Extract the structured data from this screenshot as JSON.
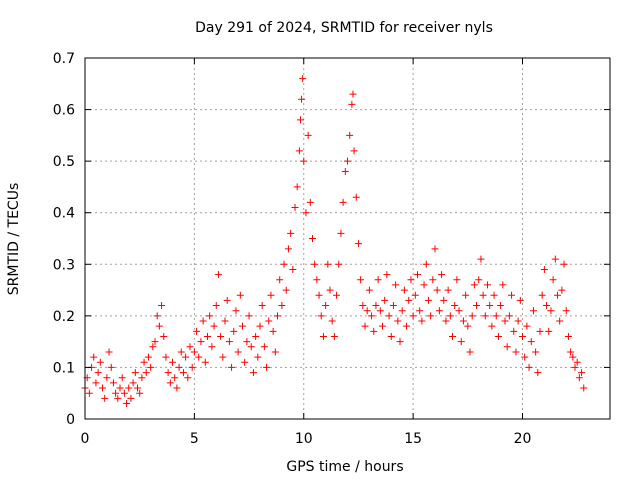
{
  "chart_data": {
    "type": "scatter",
    "title": "Day 291 of 2024, SRMTID for receiver nyls",
    "xlabel": "GPS time / hours",
    "ylabel": "SRMTID / TECUs",
    "xlim": [
      0,
      24
    ],
    "ylim": [
      0,
      0.7
    ],
    "x_ticks": [
      0,
      5,
      10,
      15,
      20
    ],
    "x_tick_labels": [
      "0",
      "5",
      "10",
      "15",
      "20"
    ],
    "y_ticks": [
      0,
      0.1,
      0.2,
      0.3,
      0.4,
      0.5,
      0.6,
      0.7
    ],
    "y_tick_labels": [
      "0",
      "0.1",
      "0.2",
      "0.3",
      "0.4",
      "0.5",
      "0.6",
      "0.7"
    ],
    "grid": true,
    "marker": "+",
    "colors": {
      "series": "#ff0000",
      "grid": "#a0a0a0",
      "axes": "#000000"
    },
    "series": [
      {
        "name": "SRMTID",
        "points": [
          [
            0.0,
            0.06
          ],
          [
            0.1,
            0.08
          ],
          [
            0.2,
            0.05
          ],
          [
            0.3,
            0.1
          ],
          [
            0.4,
            0.12
          ],
          [
            0.5,
            0.07
          ],
          [
            0.6,
            0.09
          ],
          [
            0.7,
            0.11
          ],
          [
            0.8,
            0.06
          ],
          [
            0.9,
            0.04
          ],
          [
            1.0,
            0.08
          ],
          [
            1.1,
            0.13
          ],
          [
            1.2,
            0.1
          ],
          [
            1.3,
            0.07
          ],
          [
            1.4,
            0.05
          ],
          [
            1.5,
            0.04
          ],
          [
            1.6,
            0.06
          ],
          [
            1.7,
            0.08
          ],
          [
            1.8,
            0.05
          ],
          [
            1.9,
            0.03
          ],
          [
            2.0,
            0.06
          ],
          [
            2.1,
            0.04
          ],
          [
            2.2,
            0.07
          ],
          [
            2.3,
            0.09
          ],
          [
            2.4,
            0.06
          ],
          [
            2.5,
            0.05
          ],
          [
            2.6,
            0.08
          ],
          [
            2.7,
            0.11
          ],
          [
            2.8,
            0.09
          ],
          [
            2.9,
            0.12
          ],
          [
            3.0,
            0.1
          ],
          [
            3.1,
            0.14
          ],
          [
            3.2,
            0.15
          ],
          [
            3.3,
            0.2
          ],
          [
            3.4,
            0.18
          ],
          [
            3.5,
            0.22
          ],
          [
            3.6,
            0.16
          ],
          [
            3.7,
            0.12
          ],
          [
            3.8,
            0.09
          ],
          [
            3.9,
            0.07
          ],
          [
            4.0,
            0.11
          ],
          [
            4.1,
            0.08
          ],
          [
            4.2,
            0.06
          ],
          [
            4.3,
            0.1
          ],
          [
            4.4,
            0.13
          ],
          [
            4.5,
            0.09
          ],
          [
            4.6,
            0.12
          ],
          [
            4.7,
            0.08
          ],
          [
            4.8,
            0.14
          ],
          [
            4.9,
            0.1
          ],
          [
            5.0,
            0.13
          ],
          [
            5.1,
            0.17
          ],
          [
            5.2,
            0.12
          ],
          [
            5.3,
            0.15
          ],
          [
            5.4,
            0.19
          ],
          [
            5.5,
            0.11
          ],
          [
            5.6,
            0.16
          ],
          [
            5.7,
            0.2
          ],
          [
            5.8,
            0.14
          ],
          [
            5.9,
            0.18
          ],
          [
            6.0,
            0.22
          ],
          [
            6.1,
            0.28
          ],
          [
            6.2,
            0.16
          ],
          [
            6.3,
            0.12
          ],
          [
            6.4,
            0.19
          ],
          [
            6.5,
            0.23
          ],
          [
            6.6,
            0.15
          ],
          [
            6.7,
            0.1
          ],
          [
            6.8,
            0.17
          ],
          [
            6.9,
            0.21
          ],
          [
            7.0,
            0.13
          ],
          [
            7.1,
            0.24
          ],
          [
            7.2,
            0.18
          ],
          [
            7.3,
            0.11
          ],
          [
            7.4,
            0.15
          ],
          [
            7.5,
            0.2
          ],
          [
            7.6,
            0.14
          ],
          [
            7.7,
            0.09
          ],
          [
            7.8,
            0.16
          ],
          [
            7.9,
            0.12
          ],
          [
            8.0,
            0.18
          ],
          [
            8.1,
            0.22
          ],
          [
            8.2,
            0.14
          ],
          [
            8.3,
            0.1
          ],
          [
            8.4,
            0.19
          ],
          [
            8.5,
            0.24
          ],
          [
            8.6,
            0.17
          ],
          [
            8.7,
            0.13
          ],
          [
            8.8,
            0.2
          ],
          [
            8.9,
            0.27
          ],
          [
            9.0,
            0.22
          ],
          [
            9.1,
            0.3
          ],
          [
            9.2,
            0.25
          ],
          [
            9.3,
            0.33
          ],
          [
            9.4,
            0.36
          ],
          [
            9.5,
            0.29
          ],
          [
            9.6,
            0.41
          ],
          [
            9.7,
            0.45
          ],
          [
            9.8,
            0.52
          ],
          [
            9.85,
            0.58
          ],
          [
            9.9,
            0.62
          ],
          [
            9.95,
            0.66
          ],
          [
            10.0,
            0.5
          ],
          [
            10.1,
            0.4
          ],
          [
            10.2,
            0.55
          ],
          [
            10.3,
            0.42
          ],
          [
            10.4,
            0.35
          ],
          [
            10.5,
            0.3
          ],
          [
            10.6,
            0.27
          ],
          [
            10.7,
            0.24
          ],
          [
            10.8,
            0.2
          ],
          [
            10.9,
            0.16
          ],
          [
            11.0,
            0.22
          ],
          [
            11.1,
            0.3
          ],
          [
            11.2,
            0.25
          ],
          [
            11.3,
            0.19
          ],
          [
            11.4,
            0.16
          ],
          [
            11.5,
            0.24
          ],
          [
            11.6,
            0.3
          ],
          [
            11.7,
            0.36
          ],
          [
            11.8,
            0.42
          ],
          [
            11.9,
            0.48
          ],
          [
            12.0,
            0.5
          ],
          [
            12.1,
            0.55
          ],
          [
            12.2,
            0.61
          ],
          [
            12.25,
            0.63
          ],
          [
            12.3,
            0.52
          ],
          [
            12.4,
            0.43
          ],
          [
            12.5,
            0.34
          ],
          [
            12.6,
            0.27
          ],
          [
            12.7,
            0.22
          ],
          [
            12.8,
            0.18
          ],
          [
            12.9,
            0.21
          ],
          [
            13.0,
            0.25
          ],
          [
            13.1,
            0.2
          ],
          [
            13.2,
            0.17
          ],
          [
            13.3,
            0.22
          ],
          [
            13.4,
            0.27
          ],
          [
            13.5,
            0.21
          ],
          [
            13.6,
            0.18
          ],
          [
            13.7,
            0.23
          ],
          [
            13.8,
            0.28
          ],
          [
            13.9,
            0.2
          ],
          [
            14.0,
            0.16
          ],
          [
            14.1,
            0.22
          ],
          [
            14.2,
            0.26
          ],
          [
            14.3,
            0.19
          ],
          [
            14.4,
            0.15
          ],
          [
            14.5,
            0.21
          ],
          [
            14.6,
            0.25
          ],
          [
            14.7,
            0.18
          ],
          [
            14.8,
            0.23
          ],
          [
            14.9,
            0.27
          ],
          [
            15.0,
            0.2
          ],
          [
            15.1,
            0.24
          ],
          [
            15.2,
            0.28
          ],
          [
            15.3,
            0.21
          ],
          [
            15.4,
            0.19
          ],
          [
            15.5,
            0.26
          ],
          [
            15.6,
            0.3
          ],
          [
            15.7,
            0.23
          ],
          [
            15.8,
            0.2
          ],
          [
            15.9,
            0.27
          ],
          [
            16.0,
            0.33
          ],
          [
            16.1,
            0.25
          ],
          [
            16.2,
            0.21
          ],
          [
            16.3,
            0.28
          ],
          [
            16.4,
            0.23
          ],
          [
            16.5,
            0.19
          ],
          [
            16.6,
            0.25
          ],
          [
            16.7,
            0.2
          ],
          [
            16.8,
            0.16
          ],
          [
            16.9,
            0.22
          ],
          [
            17.0,
            0.27
          ],
          [
            17.1,
            0.21
          ],
          [
            17.2,
            0.15
          ],
          [
            17.3,
            0.19
          ],
          [
            17.4,
            0.24
          ],
          [
            17.5,
            0.18
          ],
          [
            17.6,
            0.13
          ],
          [
            17.7,
            0.2
          ],
          [
            17.8,
            0.26
          ],
          [
            17.9,
            0.22
          ],
          [
            18.0,
            0.27
          ],
          [
            18.1,
            0.31
          ],
          [
            18.2,
            0.24
          ],
          [
            18.3,
            0.2
          ],
          [
            18.4,
            0.26
          ],
          [
            18.5,
            0.22
          ],
          [
            18.6,
            0.18
          ],
          [
            18.7,
            0.24
          ],
          [
            18.8,
            0.2
          ],
          [
            18.9,
            0.16
          ],
          [
            19.0,
            0.22
          ],
          [
            19.1,
            0.26
          ],
          [
            19.2,
            0.19
          ],
          [
            19.3,
            0.14
          ],
          [
            19.4,
            0.2
          ],
          [
            19.5,
            0.24
          ],
          [
            19.6,
            0.17
          ],
          [
            19.7,
            0.13
          ],
          [
            19.8,
            0.19
          ],
          [
            19.9,
            0.23
          ],
          [
            20.0,
            0.16
          ],
          [
            20.1,
            0.12
          ],
          [
            20.2,
            0.18
          ],
          [
            20.3,
            0.1
          ],
          [
            20.4,
            0.15
          ],
          [
            20.5,
            0.21
          ],
          [
            20.6,
            0.13
          ],
          [
            20.7,
            0.09
          ],
          [
            20.8,
            0.17
          ],
          [
            20.9,
            0.24
          ],
          [
            21.0,
            0.29
          ],
          [
            21.1,
            0.22
          ],
          [
            21.2,
            0.17
          ],
          [
            21.3,
            0.21
          ],
          [
            21.4,
            0.27
          ],
          [
            21.5,
            0.31
          ],
          [
            21.6,
            0.24
          ],
          [
            21.7,
            0.19
          ],
          [
            21.8,
            0.25
          ],
          [
            21.9,
            0.3
          ],
          [
            22.0,
            0.21
          ],
          [
            22.1,
            0.16
          ],
          [
            22.2,
            0.13
          ],
          [
            22.3,
            0.12
          ],
          [
            22.4,
            0.1
          ],
          [
            22.5,
            0.11
          ],
          [
            22.6,
            0.08
          ],
          [
            22.7,
            0.09
          ],
          [
            22.8,
            0.06
          ]
        ]
      }
    ]
  }
}
